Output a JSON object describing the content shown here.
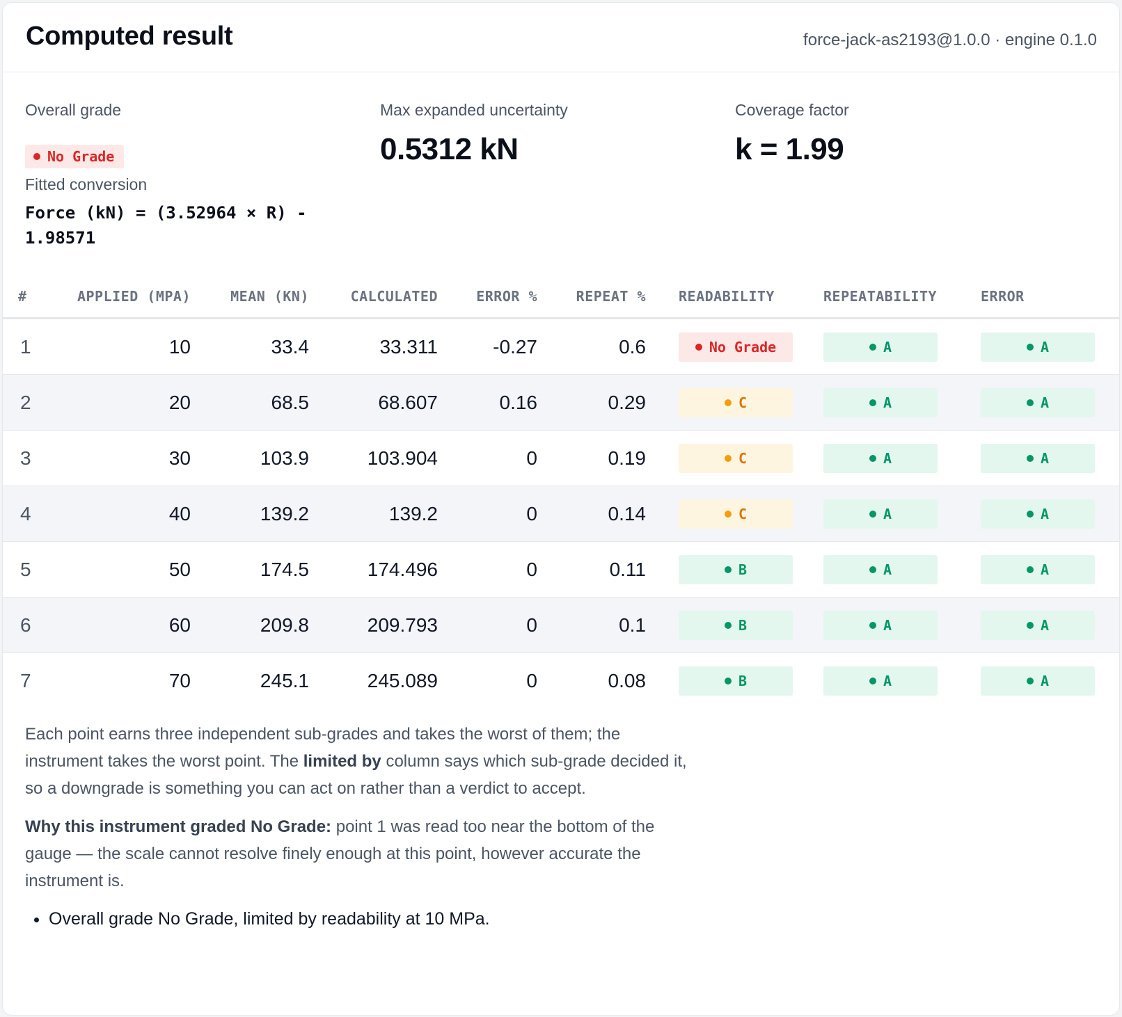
{
  "header": {
    "title": "Computed result",
    "meta": "force-jack-as2193@1.0.0 · engine 0.1.0"
  },
  "summary": {
    "overall_grade_label": "Overall grade",
    "overall_grade": "No Grade",
    "fitted_conversion_label": "Fitted conversion",
    "fitted_conversion": "Force (kN) = (3.52964 × R) - 1.98571",
    "max_uncertainty_label": "Max expanded uncertainty",
    "max_uncertainty": "0.5312 kN",
    "coverage_factor_label": "Coverage factor",
    "coverage_factor": "k = 1.99"
  },
  "table": {
    "columns": [
      "#",
      "APPLIED (MPA)",
      "MEAN (KN)",
      "CALCULATED",
      "ERROR %",
      "REPEAT %",
      "READABILITY",
      "REPEATABILITY",
      "ERROR"
    ],
    "rows": [
      {
        "n": "1",
        "applied": "10",
        "mean": "33.4",
        "calculated": "33.311",
        "error_pct": "-0.27",
        "repeat_pct": "0.6",
        "readability": "No Grade",
        "repeatability": "A",
        "error": "A"
      },
      {
        "n": "2",
        "applied": "20",
        "mean": "68.5",
        "calculated": "68.607",
        "error_pct": "0.16",
        "repeat_pct": "0.29",
        "readability": "C",
        "repeatability": "A",
        "error": "A"
      },
      {
        "n": "3",
        "applied": "30",
        "mean": "103.9",
        "calculated": "103.904",
        "error_pct": "0",
        "repeat_pct": "0.19",
        "readability": "C",
        "repeatability": "A",
        "error": "A"
      },
      {
        "n": "4",
        "applied": "40",
        "mean": "139.2",
        "calculated": "139.2",
        "error_pct": "0",
        "repeat_pct": "0.14",
        "readability": "C",
        "repeatability": "A",
        "error": "A"
      },
      {
        "n": "5",
        "applied": "50",
        "mean": "174.5",
        "calculated": "174.496",
        "error_pct": "0",
        "repeat_pct": "0.11",
        "readability": "B",
        "repeatability": "A",
        "error": "A"
      },
      {
        "n": "6",
        "applied": "60",
        "mean": "209.8",
        "calculated": "209.793",
        "error_pct": "0",
        "repeat_pct": "0.1",
        "readability": "B",
        "repeatability": "A",
        "error": "A"
      },
      {
        "n": "7",
        "applied": "70",
        "mean": "245.1",
        "calculated": "245.089",
        "error_pct": "0",
        "repeat_pct": "0.08",
        "readability": "B",
        "repeatability": "A",
        "error": "A"
      }
    ]
  },
  "grade_colors": {
    "No Grade": "#dc2626",
    "C": "#d97706",
    "B": "#059669",
    "A": "#059669"
  },
  "notes": {
    "p1_before": "Each point earns three independent sub-grades and takes the worst of them; the instrument takes the worst point. The ",
    "p1_bold": "limited by",
    "p1_after": " column says which sub-grade decided it, so a downgrade is something you can act on rather than a verdict to accept.",
    "p2_bold": "Why this instrument graded No Grade:",
    "p2_text": " point 1 was read too near the bottom of the gauge — the scale cannot resolve finely enough at this point, however accurate the instrument is.",
    "bullet": "Overall grade No Grade, limited by readability at 10 MPa."
  }
}
